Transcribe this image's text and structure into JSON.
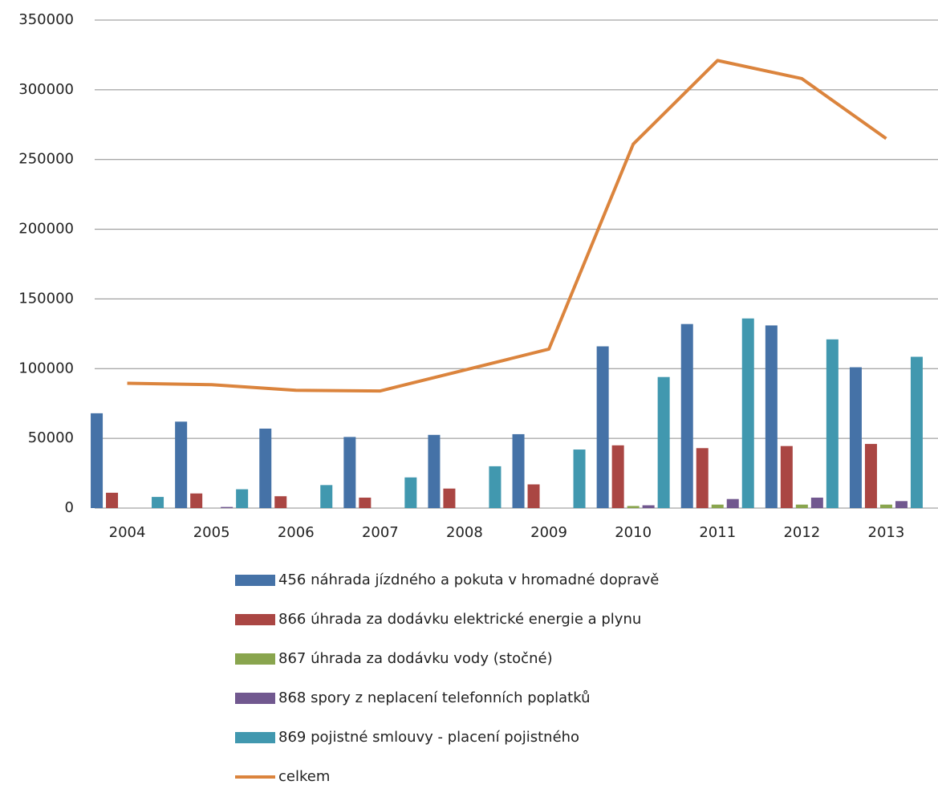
{
  "chart_data": {
    "type": "bar",
    "categories": [
      "2004",
      "2005",
      "2006",
      "2007",
      "2008",
      "2009",
      "2010",
      "2011",
      "2012",
      "2013"
    ],
    "series": [
      {
        "name": "456 náhrada jízdného a pokuta v hromadné dopravě",
        "color": "#4572a7",
        "values": [
          68000,
          62000,
          57000,
          51000,
          52500,
          53000,
          116000,
          132000,
          131000,
          101000
        ]
      },
      {
        "name": "866 úhrada za dodávku elektrické energie a plynu",
        "color": "#aa4643",
        "values": [
          11000,
          10500,
          8500,
          7500,
          14000,
          17000,
          45000,
          43000,
          44500,
          46000
        ]
      },
      {
        "name": "867 úhrada za dodávku vody (stočné)",
        "color": "#89a54e",
        "values": [
          0,
          0,
          0,
          0,
          0,
          0,
          1500,
          2500,
          2500,
          2500
        ]
      },
      {
        "name": "868 spory z neplacení telefonních poplatků",
        "color": "#71588f",
        "values": [
          0,
          800,
          0,
          0,
          0,
          0,
          2000,
          6500,
          7500,
          5000
        ]
      },
      {
        "name": "869 pojistné smlouvy - placení pojistného",
        "color": "#4198af",
        "values": [
          8000,
          13500,
          16500,
          22000,
          30000,
          42000,
          94000,
          136000,
          121000,
          108500
        ]
      },
      {
        "name": "celkem",
        "color": "#db843d",
        "type": "line",
        "values": [
          89500,
          88500,
          84500,
          84000,
          99000,
          114000,
          261000,
          321000,
          308000,
          265000
        ]
      }
    ],
    "ylim": [
      0,
      350000
    ],
    "yticks": [
      0,
      50000,
      100000,
      150000,
      200000,
      250000,
      300000,
      350000
    ],
    "grid": true,
    "legend": "bottom"
  }
}
